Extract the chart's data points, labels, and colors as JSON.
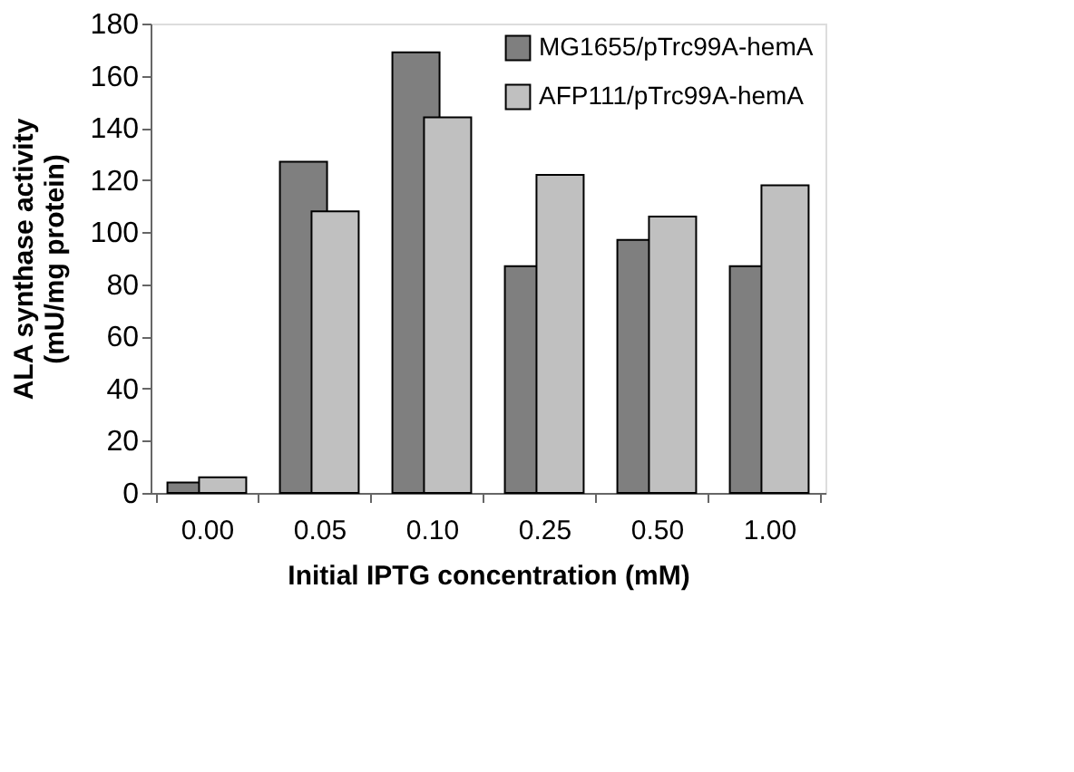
{
  "chart_data": {
    "type": "bar",
    "xlabel": "Initial IPTG concentration (mM)",
    "ylabel": "ALA synthase activity\n(mU/mg protein)",
    "categories": [
      "0.00",
      "0.05",
      "0.10",
      "0.25",
      "0.50",
      "1.00"
    ],
    "series": [
      {
        "name": "MG1655/pTrc99A-hemA",
        "color": "#7f7f7f",
        "values": [
          4,
          127,
          169,
          87,
          97,
          87
        ]
      },
      {
        "name": "AFP111/pTrc99A-hemA",
        "color": "#c0c0c0",
        "values": [
          6,
          108,
          144,
          122,
          106,
          118
        ]
      }
    ],
    "ylim": [
      0,
      180
    ],
    "yticks": [
      0,
      20,
      40,
      60,
      80,
      100,
      120,
      140,
      160,
      180
    ],
    "grid": false,
    "legend": "top right"
  }
}
